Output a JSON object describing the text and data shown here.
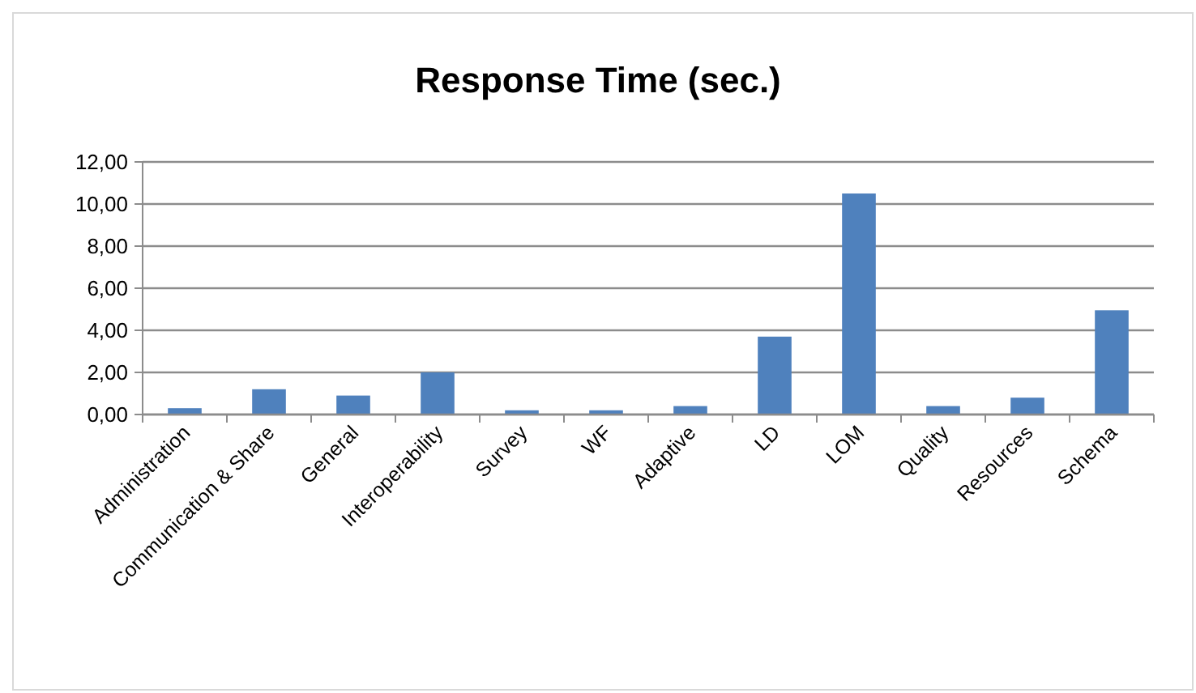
{
  "chart_data": {
    "type": "bar",
    "title": "Response Time (sec.)",
    "categories": [
      "Administration",
      "Communication & Share",
      "General",
      "Interoperability",
      "Survey",
      "WF",
      "Adaptive",
      "LD",
      "LOM",
      "Quality",
      "Resources",
      "Schema"
    ],
    "values": [
      0.3,
      1.2,
      0.9,
      2.0,
      0.2,
      0.2,
      0.4,
      3.7,
      10.5,
      0.4,
      0.8,
      4.95
    ],
    "color": "#4f81bd",
    "ylim": [
      0,
      12
    ],
    "yticks": [
      {
        "value": 0,
        "label": "0,00"
      },
      {
        "value": 2,
        "label": "2,00"
      },
      {
        "value": 4,
        "label": "4,00"
      },
      {
        "value": 6,
        "label": "6,00"
      },
      {
        "value": 8,
        "label": "8,00"
      },
      {
        "value": 10,
        "label": "10,00"
      },
      {
        "value": 12,
        "label": "12,00"
      }
    ],
    "grid": "y"
  }
}
